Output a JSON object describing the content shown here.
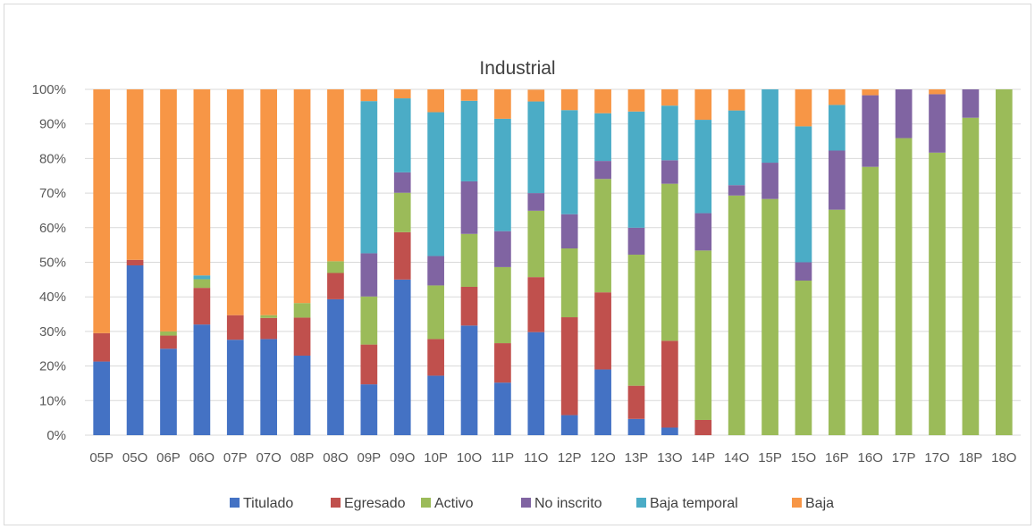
{
  "chart_data": {
    "type": "bar",
    "stacked": true,
    "title": "Industrial",
    "xlabel": "",
    "ylabel": "",
    "ylim": [
      0,
      100
    ],
    "y_ticks": [
      "0%",
      "10%",
      "20%",
      "30%",
      "40%",
      "50%",
      "60%",
      "70%",
      "80%",
      "90%",
      "100%"
    ],
    "grid": true,
    "legend_position": "bottom",
    "categories": [
      "05P",
      "05O",
      "06P",
      "06O",
      "07P",
      "07O",
      "08P",
      "08O",
      "09P",
      "09O",
      "10P",
      "10O",
      "11P",
      "11O",
      "12P",
      "12O",
      "13P",
      "13O",
      "14P",
      "14O",
      "15P",
      "15O",
      "16P",
      "16O",
      "17P",
      "17O",
      "18P",
      "18O"
    ],
    "series": [
      {
        "name": "Titulado",
        "color": "#4472C4",
        "values": [
          21.3,
          49.1,
          25.0,
          32.0,
          27.6,
          27.8,
          23.0,
          39.3,
          14.7,
          45.0,
          17.2,
          31.7,
          15.2,
          29.8,
          5.8,
          19.0,
          4.7,
          2.2,
          0,
          0,
          0,
          0,
          0,
          0,
          0,
          0,
          0,
          0
        ]
      },
      {
        "name": "Egresado",
        "color": "#C0504D",
        "values": [
          8.2,
          1.6,
          3.8,
          10.6,
          7.1,
          6.1,
          11.0,
          7.6,
          11.5,
          13.7,
          10.6,
          11.2,
          11.4,
          15.9,
          28.3,
          22.3,
          9.6,
          25.1,
          4.4,
          0,
          0,
          0,
          0,
          0,
          0,
          0,
          0,
          0
        ]
      },
      {
        "name": "Activo",
        "color": "#9BBB59",
        "values": [
          0,
          0,
          1.2,
          2.5,
          0,
          0.8,
          4.2,
          3.4,
          13.9,
          11.4,
          15.5,
          15.3,
          22.0,
          19.2,
          19.9,
          32.8,
          37.9,
          45.4,
          49.0,
          69.3,
          68.3,
          44.7,
          65.2,
          77.6,
          85.9,
          81.7,
          91.8,
          100
        ]
      },
      {
        "name": "No inscrito",
        "color": "#8064A2",
        "values": [
          0,
          0,
          0,
          0,
          0,
          0,
          0,
          0,
          12.5,
          5.9,
          8.5,
          15.2,
          10.4,
          5.1,
          9.9,
          5.2,
          7.8,
          6.8,
          10.8,
          3.0,
          10.5,
          5.3,
          17.1,
          20.7,
          14.1,
          16.9,
          8.2,
          0
        ]
      },
      {
        "name": "Baja temporal",
        "color": "#4BACC6",
        "values": [
          0,
          0,
          0,
          1.1,
          0,
          0,
          0,
          0,
          44.0,
          21.4,
          41.6,
          23.3,
          32.5,
          26.5,
          30.1,
          13.8,
          33.6,
          15.8,
          27.0,
          21.6,
          21.2,
          39.3,
          13.2,
          0,
          0,
          0,
          0,
          0
        ]
      },
      {
        "name": "Baja",
        "color": "#F79646",
        "values": [
          70.5,
          49.3,
          70.0,
          53.8,
          65.3,
          65.3,
          61.8,
          49.7,
          3.4,
          2.6,
          6.6,
          3.3,
          8.5,
          3.4,
          6.0,
          6.9,
          6.4,
          4.7,
          8.8,
          6.1,
          0,
          10.7,
          4.5,
          1.7,
          0,
          1.4,
          0,
          0
        ]
      }
    ]
  }
}
